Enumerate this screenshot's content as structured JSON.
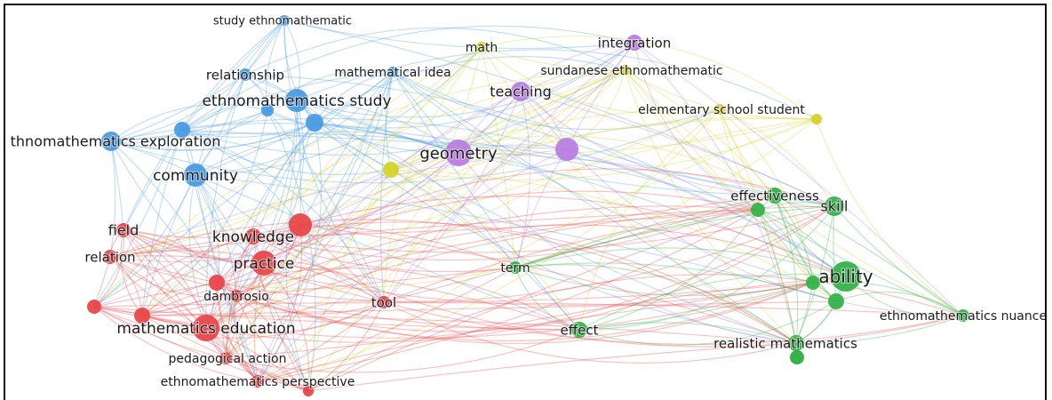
{
  "cluster_colors": {
    "red": "#e8474a",
    "green": "#36b24a",
    "blue": "#4a9be0",
    "yellow": "#d4d428",
    "purple": "#b87ee0"
  },
  "nodes": [
    {
      "id": "study-ethnomathematic",
      "label": "study ethnomathematic",
      "cluster": "blue"
    },
    {
      "id": "relationship",
      "label": "relationship",
      "cluster": "blue"
    },
    {
      "id": "mathematical-idea",
      "label": "mathematical idea",
      "cluster": "blue"
    },
    {
      "id": "ethnomathematics-study",
      "label": "ethnomathematics study",
      "cluster": "blue"
    },
    {
      "id": "ethnomathematics-exploration",
      "label": "thnomathematics exploration",
      "cluster": "blue"
    },
    {
      "id": "community",
      "label": "community",
      "cluster": "blue"
    },
    {
      "id": "blue-a",
      "label": "",
      "cluster": "blue"
    },
    {
      "id": "blue-b",
      "label": "",
      "cluster": "blue"
    },
    {
      "id": "blue-c",
      "label": "",
      "cluster": "blue"
    },
    {
      "id": "math",
      "label": "math",
      "cluster": "yellow"
    },
    {
      "id": "sundanese-ethnomathematic",
      "label": "sundanese ethnomathematic",
      "cluster": "yellow"
    },
    {
      "id": "elementary-school-student",
      "label": "elementary school student",
      "cluster": "yellow"
    },
    {
      "id": "yellow-a",
      "label": "",
      "cluster": "yellow"
    },
    {
      "id": "yellow-b",
      "label": "",
      "cluster": "yellow"
    },
    {
      "id": "integration",
      "label": "integration",
      "cluster": "purple"
    },
    {
      "id": "teaching",
      "label": "teaching",
      "cluster": "purple"
    },
    {
      "id": "geometry",
      "label": "geometry",
      "cluster": "purple"
    },
    {
      "id": "purple-a",
      "label": "",
      "cluster": "purple"
    },
    {
      "id": "field",
      "label": "field",
      "cluster": "red"
    },
    {
      "id": "knowledge",
      "label": "knowledge",
      "cluster": "red"
    },
    {
      "id": "relation",
      "label": "relation",
      "cluster": "red"
    },
    {
      "id": "practice",
      "label": "practice",
      "cluster": "red"
    },
    {
      "id": "dambrosio",
      "label": "dambrosio",
      "cluster": "red"
    },
    {
      "id": "tool",
      "label": "tool",
      "cluster": "red"
    },
    {
      "id": "mathematics-education",
      "label": "mathematics education",
      "cluster": "red"
    },
    {
      "id": "pedagogical-action",
      "label": "pedagogical action",
      "cluster": "red"
    },
    {
      "id": "ethnomathematics-perspective",
      "label": "ethnomathematics perspective",
      "cluster": "red"
    },
    {
      "id": "red-a",
      "label": "",
      "cluster": "red"
    },
    {
      "id": "red-b",
      "label": "",
      "cluster": "red"
    },
    {
      "id": "red-c",
      "label": "",
      "cluster": "red"
    },
    {
      "id": "red-d",
      "label": "",
      "cluster": "red"
    },
    {
      "id": "red-e",
      "label": "",
      "cluster": "red"
    },
    {
      "id": "term",
      "label": "term",
      "cluster": "green"
    },
    {
      "id": "effect",
      "label": "effect",
      "cluster": "green"
    },
    {
      "id": "effectiveness",
      "label": "effectiveness",
      "cluster": "green"
    },
    {
      "id": "skill",
      "label": "skill",
      "cluster": "green"
    },
    {
      "id": "ability",
      "label": "ability",
      "cluster": "green"
    },
    {
      "id": "ethnomathematics-nuance",
      "label": "ethnomathematics nuance",
      "cluster": "green"
    },
    {
      "id": "realistic-mathematics",
      "label": "realistic mathematics",
      "cluster": "green"
    },
    {
      "id": "green-a",
      "label": "",
      "cluster": "green"
    },
    {
      "id": "green-b",
      "label": "",
      "cluster": "green"
    },
    {
      "id": "green-c",
      "label": "",
      "cluster": "green"
    }
  ]
}
